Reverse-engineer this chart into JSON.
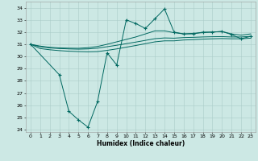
{
  "xlabel": "Humidex (Indice chaleur)",
  "bg_color": "#cce8e4",
  "grid_color": "#aaccc8",
  "line_color": "#006860",
  "xlim": [
    -0.5,
    23.5
  ],
  "ylim": [
    23.8,
    34.5
  ],
  "yticks": [
    24,
    25,
    26,
    27,
    28,
    29,
    30,
    31,
    32,
    33,
    34
  ],
  "xticks": [
    0,
    1,
    2,
    3,
    4,
    5,
    6,
    7,
    8,
    9,
    10,
    11,
    12,
    13,
    14,
    15,
    16,
    17,
    18,
    19,
    20,
    21,
    22,
    23
  ],
  "series": {
    "line1_upper": {
      "x": [
        0,
        1,
        2,
        3,
        4,
        5,
        6,
        7,
        8,
        9,
        10,
        11,
        12,
        13,
        14,
        15,
        16,
        17,
        18,
        19,
        20,
        21,
        22,
        23
      ],
      "y": [
        31.0,
        30.85,
        30.75,
        30.7,
        30.68,
        30.67,
        30.72,
        30.82,
        31.0,
        31.2,
        31.4,
        31.6,
        31.85,
        32.1,
        32.1,
        31.95,
        31.85,
        31.9,
        31.95,
        32.0,
        32.05,
        31.85,
        31.75,
        31.85
      ]
    },
    "line2_mid": {
      "x": [
        0,
        1,
        2,
        3,
        4,
        5,
        6,
        7,
        8,
        9,
        10,
        11,
        12,
        13,
        14,
        15,
        16,
        17,
        18,
        19,
        20,
        21,
        22,
        23
      ],
      "y": [
        31.0,
        30.8,
        30.7,
        30.65,
        30.62,
        30.6,
        30.62,
        30.68,
        30.8,
        30.92,
        31.05,
        31.18,
        31.32,
        31.46,
        31.52,
        31.5,
        31.55,
        31.57,
        31.6,
        31.62,
        31.63,
        31.6,
        31.6,
        31.65
      ]
    },
    "line3_lower": {
      "x": [
        0,
        1,
        2,
        3,
        4,
        5,
        6,
        7,
        8,
        9,
        10,
        11,
        12,
        13,
        14,
        15,
        16,
        17,
        18,
        19,
        20,
        21,
        22,
        23
      ],
      "y": [
        31.0,
        30.65,
        30.55,
        30.48,
        30.43,
        30.4,
        30.38,
        30.4,
        30.5,
        30.62,
        30.76,
        30.9,
        31.05,
        31.2,
        31.28,
        31.28,
        31.35,
        31.38,
        31.42,
        31.45,
        31.47,
        31.45,
        31.45,
        31.5
      ]
    },
    "line4_data": {
      "x": [
        0,
        3,
        4,
        5,
        6,
        7,
        8,
        9,
        10,
        11,
        12,
        13,
        14,
        15,
        16,
        17,
        18,
        19,
        20,
        21,
        22,
        23
      ],
      "y": [
        31.0,
        28.5,
        25.5,
        24.8,
        24.2,
        26.3,
        30.3,
        29.3,
        33.0,
        32.7,
        32.3,
        33.1,
        33.9,
        32.0,
        31.85,
        31.85,
        32.0,
        32.0,
        32.05,
        31.8,
        31.45,
        31.65
      ]
    }
  }
}
